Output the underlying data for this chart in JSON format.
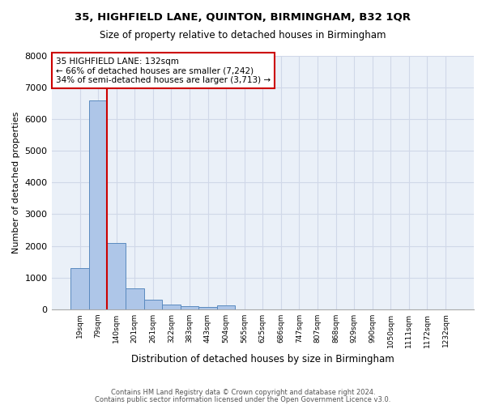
{
  "title1": "35, HIGHFIELD LANE, QUINTON, BIRMINGHAM, B32 1QR",
  "title2": "Size of property relative to detached houses in Birmingham",
  "xlabel": "Distribution of detached houses by size in Birmingham",
  "ylabel": "Number of detached properties",
  "footer1": "Contains HM Land Registry data © Crown copyright and database right 2024.",
  "footer2": "Contains public sector information licensed under the Open Government Licence v3.0.",
  "annotation_title": "35 HIGHFIELD LANE: 132sqm",
  "annotation_line1": "← 66% of detached houses are smaller (7,242)",
  "annotation_line2": "34% of semi-detached houses are larger (3,713) →",
  "bar_values": [
    1300,
    6600,
    2080,
    650,
    290,
    155,
    95,
    80,
    110,
    0,
    0,
    0,
    0,
    0,
    0,
    0,
    0,
    0,
    0,
    0,
    0
  ],
  "categories": [
    "19sqm",
    "79sqm",
    "140sqm",
    "201sqm",
    "261sqm",
    "322sqm",
    "383sqm",
    "443sqm",
    "504sqm",
    "565sqm",
    "625sqm",
    "686sqm",
    "747sqm",
    "807sqm",
    "868sqm",
    "929sqm",
    "990sqm",
    "1050sqm",
    "1111sqm",
    "1172sqm",
    "1232sqm"
  ],
  "bar_color": "#aec6e8",
  "bar_edge_color": "#5a8abf",
  "grid_color": "#d0d8e8",
  "background_color": "#eaf0f8",
  "vline_color": "#cc0000",
  "vline_x_index": 1.5,
  "box_color": "#cc0000",
  "ylim": [
    0,
    8000
  ],
  "yticks": [
    0,
    1000,
    2000,
    3000,
    4000,
    5000,
    6000,
    7000,
    8000
  ]
}
